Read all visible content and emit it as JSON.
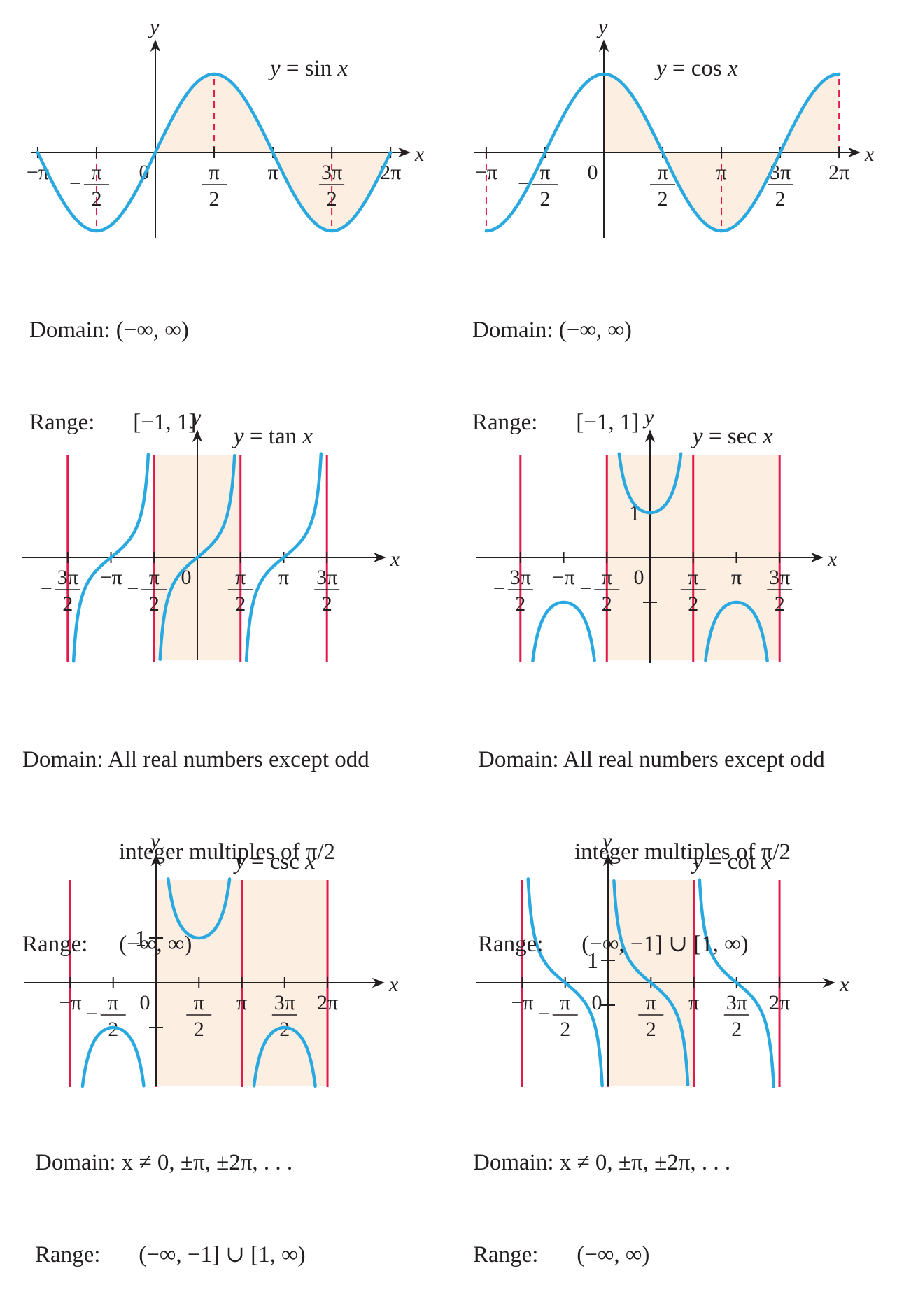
{
  "colors": {
    "curve": "#2aa8e0",
    "asymptote": "#e2194b",
    "shade": "#fdeee2",
    "axis": "#231f20"
  },
  "chart_data": [
    {
      "id": "sin",
      "type": "line",
      "function": "sin",
      "title_lhs": "y",
      "title_rhs": "sin x",
      "xlabel": "x",
      "ylabel": "y",
      "xlim": [
        -3.1416,
        6.2832
      ],
      "ylim": [
        -1,
        1
      ],
      "shade_interval": [
        0,
        6.2832
      ],
      "dashed_guides": [
        -1.5708,
        1.5708,
        4.7124
      ],
      "ticks": [
        {
          "x": -3.1416,
          "num": "−π"
        },
        {
          "x": -1.5708,
          "neg": "−",
          "num": "π",
          "den": "2"
        },
        {
          "x": 0,
          "num": "0"
        },
        {
          "x": 1.5708,
          "num": "π",
          "den": "2"
        },
        {
          "x": 3.1416,
          "num": "π"
        },
        {
          "x": 4.7124,
          "num": "3π",
          "den": "2"
        },
        {
          "x": 6.2832,
          "num": "2π"
        }
      ],
      "domain_label": "Domain:",
      "domain_text": "(−∞, ∞)",
      "range_label": "Range:",
      "range_text": "[−1, 1]"
    },
    {
      "id": "cos",
      "type": "line",
      "function": "cos",
      "title_lhs": "y",
      "title_rhs": "cos x",
      "xlabel": "x",
      "ylabel": "y",
      "xlim": [
        -3.1416,
        6.2832
      ],
      "ylim": [
        -1,
        1
      ],
      "shade_interval": [
        0,
        6.2832
      ],
      "dashed_guides": [
        -3.1416,
        3.1416,
        6.2832
      ],
      "ticks": [
        {
          "x": -3.1416,
          "num": "−π"
        },
        {
          "x": -1.5708,
          "neg": "−",
          "num": "π",
          "den": "2"
        },
        {
          "x": 0,
          "num": "0"
        },
        {
          "x": 1.5708,
          "num": "π",
          "den": "2"
        },
        {
          "x": 3.1416,
          "num": "π"
        },
        {
          "x": 4.7124,
          "num": "3π",
          "den": "2"
        },
        {
          "x": 6.2832,
          "num": "2π"
        }
      ],
      "domain_label": "Domain:",
      "domain_text": "(−∞, ∞)",
      "range_label": "Range:",
      "range_text": "[−1, 1]"
    },
    {
      "id": "tan",
      "type": "line",
      "function": "tan",
      "title_lhs": "y",
      "title_rhs": "tan x",
      "xlabel": "x",
      "ylabel": "y",
      "xlim": [
        -4.712,
        4.712
      ],
      "ylim": [
        -4.4,
        4.4
      ],
      "shade_interval": [
        -1.5708,
        1.5708
      ],
      "asymptotes": [
        -4.7124,
        -1.5708,
        1.5708,
        4.7124
      ],
      "ticks": [
        {
          "x": -4.7124,
          "neg": "−",
          "num": "3π",
          "den": "2"
        },
        {
          "x": -3.1416,
          "num": "−π"
        },
        {
          "x": -1.5708,
          "neg": "−",
          "num": "π",
          "den": "2"
        },
        {
          "x": 0,
          "num": "0"
        },
        {
          "x": 1.5708,
          "num": "π",
          "den": "2"
        },
        {
          "x": 3.1416,
          "num": "π"
        },
        {
          "x": 4.7124,
          "num": "3π",
          "den": "2"
        }
      ],
      "domain_label": "Domain:",
      "domain_text": "All real numbers except odd",
      "domain_text2": "integer multiples of π/2",
      "range_label": "Range:",
      "range_text": "(−∞, ∞)"
    },
    {
      "id": "sec",
      "type": "line",
      "function": "sec",
      "title_lhs": "y",
      "title_rhs": "sec x",
      "xlabel": "x",
      "ylabel": "y",
      "xlim": [
        -4.712,
        4.712
      ],
      "ylim": [
        -2.1,
        2.25
      ],
      "shade_interval": [
        -1.5708,
        4.7124
      ],
      "asymptotes": [
        -4.7124,
        -1.5708,
        1.5708,
        4.7124
      ],
      "ytick_label": "1",
      "ticks": [
        {
          "x": -4.7124,
          "neg": "−",
          "num": "3π",
          "den": "2"
        },
        {
          "x": -3.1416,
          "num": "−π"
        },
        {
          "x": -1.5708,
          "neg": "−",
          "num": "π",
          "den": "2"
        },
        {
          "x": 0,
          "num": "0"
        },
        {
          "x": 1.5708,
          "num": "π",
          "den": "2"
        },
        {
          "x": 3.1416,
          "num": "π"
        },
        {
          "x": 4.7124,
          "num": "3π",
          "den": "2"
        }
      ],
      "domain_label": "Domain:",
      "domain_text": "All real numbers except odd",
      "domain_text2": "integer multiples of π/2",
      "range_label": "Range:",
      "range_text": "(−∞, −1] ∪ [1, ∞)"
    },
    {
      "id": "csc",
      "type": "line",
      "function": "csc",
      "title_lhs": "y",
      "title_rhs": "csc x",
      "xlabel": "x",
      "ylabel": "y",
      "xlim": [
        -3.1416,
        6.2832
      ],
      "ylim": [
        -2.1,
        2.25
      ],
      "shade_interval": [
        0,
        6.2832
      ],
      "asymptotes": [
        -3.1416,
        0,
        3.1416,
        6.2832
      ],
      "ytick_label": "1",
      "ticks": [
        {
          "x": -3.1416,
          "num": "−π"
        },
        {
          "x": -1.5708,
          "neg": "−",
          "num": "π",
          "den": "2"
        },
        {
          "x": 0,
          "num": "0"
        },
        {
          "x": 1.5708,
          "num": "π",
          "den": "2"
        },
        {
          "x": 3.1416,
          "num": "π"
        },
        {
          "x": 4.7124,
          "num": "3π",
          "den": "2"
        },
        {
          "x": 6.2832,
          "num": "2π"
        }
      ],
      "domain_label": "Domain:",
      "domain_text": "x ≠ 0, ±π, ±2π, . . .",
      "range_label": "Range:",
      "range_text": "(−∞, −1] ∪ [1, ∞)"
    },
    {
      "id": "cot",
      "type": "line",
      "function": "cot",
      "title_lhs": "y",
      "title_rhs": "cot x",
      "xlabel": "x",
      "ylabel": "y",
      "xlim": [
        -3.1416,
        6.2832
      ],
      "ylim": [
        -4.4,
        4.4
      ],
      "shade_interval": [
        0,
        3.1416
      ],
      "asymptotes": [
        -3.1416,
        0,
        3.1416,
        6.2832
      ],
      "ytick_label": "1",
      "ticks": [
        {
          "x": -3.1416,
          "num": "−π"
        },
        {
          "x": -1.5708,
          "neg": "−",
          "num": "π",
          "den": "2"
        },
        {
          "x": 0,
          "num": "0"
        },
        {
          "x": 1.5708,
          "num": "π",
          "den": "2"
        },
        {
          "x": 3.1416,
          "num": "π"
        },
        {
          "x": 4.7124,
          "num": "3π",
          "den": "2"
        },
        {
          "x": 6.2832,
          "num": "2π"
        }
      ],
      "domain_label": "Domain:",
      "domain_text": "x ≠ 0, ±π, ±2π, . . .",
      "range_label": "Range:",
      "range_text": "(−∞, ∞)"
    }
  ]
}
